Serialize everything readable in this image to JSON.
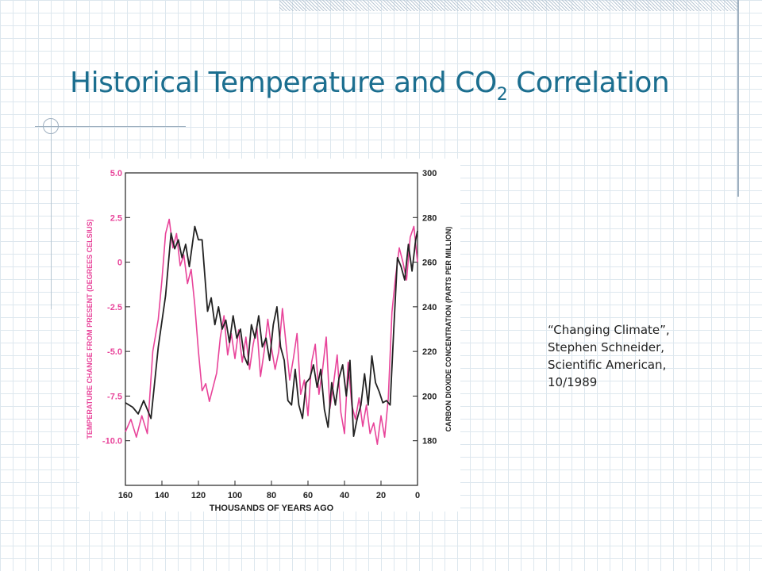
{
  "slide": {
    "title_main": "Historical Temperature and CO",
    "title_sub": "2",
    "title_end": " Correlation",
    "citation": {
      "line1": "“Changing Climate”,",
      "line2": "Stephen Schneider,",
      "line3": "Scientific American,",
      "line4": "10/1989"
    }
  },
  "chart_data": {
    "type": "line",
    "xlabel": "THOUSANDS OF YEARS AGO",
    "ylabel_left": "TEMPERATURE CHANGE FROM PRESENT (DEGREES CELSIUS)",
    "ylabel_right": "CARBON DIOXIDE CONCENTRATION (PARTS PER MILLION)",
    "x_ticks": [
      "160",
      "140",
      "120",
      "100",
      "80",
      "60",
      "40",
      "20",
      "0"
    ],
    "y_left_ticks": [
      "5.0",
      "2.5",
      "0",
      "-2.5",
      "-5.0",
      "-7.5",
      "-10.0"
    ],
    "y_right_ticks": [
      "300",
      "280",
      "260",
      "240",
      "220",
      "200",
      "180"
    ],
    "xlim": [
      160,
      0
    ],
    "ylim_left": [
      -12.5,
      5.0
    ],
    "ylim_right": [
      160,
      300
    ],
    "colors": {
      "temperature": "#e8449a",
      "co2": "#222222"
    },
    "series": [
      {
        "axis": "left",
        "x": [
          160,
          157,
          154,
          151,
          148,
          145,
          142,
          140,
          138,
          136,
          134,
          132,
          130,
          128,
          126,
          124,
          122,
          120,
          118,
          116,
          114,
          112,
          110,
          108,
          106,
          104,
          102,
          100,
          98,
          96,
          94,
          92,
          90,
          88,
          86,
          84,
          82,
          80,
          78,
          76,
          74,
          72,
          70,
          68,
          66,
          64,
          62,
          60,
          58,
          56,
          54,
          52,
          50,
          48,
          46,
          44,
          42,
          40,
          38,
          36,
          34,
          32,
          30,
          28,
          26,
          24,
          22,
          20,
          18,
          16,
          14,
          12,
          10,
          8,
          6,
          4,
          2,
          0
        ],
        "values": [
          -9.5,
          -8.8,
          -9.8,
          -8.6,
          -9.6,
          -5.0,
          -3.2,
          -1.0,
          1.6,
          2.4,
          0.8,
          1.6,
          -0.2,
          0.4,
          -1.2,
          -0.4,
          -2.4,
          -5.0,
          -7.2,
          -6.8,
          -7.8,
          -7.0,
          -6.2,
          -4.2,
          -3.0,
          -5.2,
          -4.0,
          -5.4,
          -3.8,
          -5.6,
          -4.2,
          -6.0,
          -4.6,
          -3.6,
          -6.4,
          -5.0,
          -3.2,
          -4.8,
          -6.0,
          -5.0,
          -2.6,
          -4.6,
          -6.6,
          -5.4,
          -4.0,
          -7.4,
          -6.6,
          -8.6,
          -5.6,
          -4.6,
          -7.4,
          -6.0,
          -4.2,
          -8.2,
          -6.8,
          -5.2,
          -8.4,
          -9.6,
          -5.6,
          -8.0,
          -8.8,
          -7.6,
          -9.2,
          -8.0,
          -9.6,
          -9.0,
          -10.2,
          -8.6,
          -9.8,
          -7.6,
          -2.8,
          -0.8,
          0.8,
          0.0,
          -1.0,
          1.4,
          2.0,
          0.0
        ]
      },
      {
        "axis": "right",
        "x": [
          160,
          156,
          153,
          150,
          146,
          142,
          138,
          135,
          133,
          131,
          129,
          127,
          125,
          122,
          120,
          118,
          115,
          113,
          111,
          109,
          107,
          105,
          103,
          101,
          99,
          97,
          95,
          93,
          91,
          89,
          87,
          85,
          83,
          81,
          79,
          77,
          75,
          73,
          71,
          69,
          67,
          65,
          63,
          61,
          59,
          57,
          55,
          53,
          51,
          49,
          47,
          45,
          43,
          41,
          39,
          37,
          35,
          33,
          31,
          29,
          27,
          25,
          23,
          21,
          19,
          17,
          15,
          13,
          11,
          9,
          7,
          5,
          3,
          1,
          0
        ],
        "values": [
          197,
          195,
          192,
          198,
          190,
          222,
          245,
          273,
          266,
          270,
          262,
          268,
          258,
          276,
          270,
          270,
          238,
          244,
          232,
          240,
          230,
          234,
          224,
          236,
          226,
          230,
          218,
          214,
          232,
          226,
          236,
          222,
          226,
          216,
          232,
          240,
          222,
          216,
          198,
          196,
          212,
          196,
          190,
          206,
          208,
          214,
          204,
          212,
          194,
          186,
          206,
          196,
          208,
          214,
          200,
          216,
          182,
          190,
          196,
          210,
          196,
          218,
          206,
          202,
          197,
          198,
          196,
          230,
          262,
          258,
          252,
          268,
          256,
          270,
          274
        ]
      }
    ]
  }
}
